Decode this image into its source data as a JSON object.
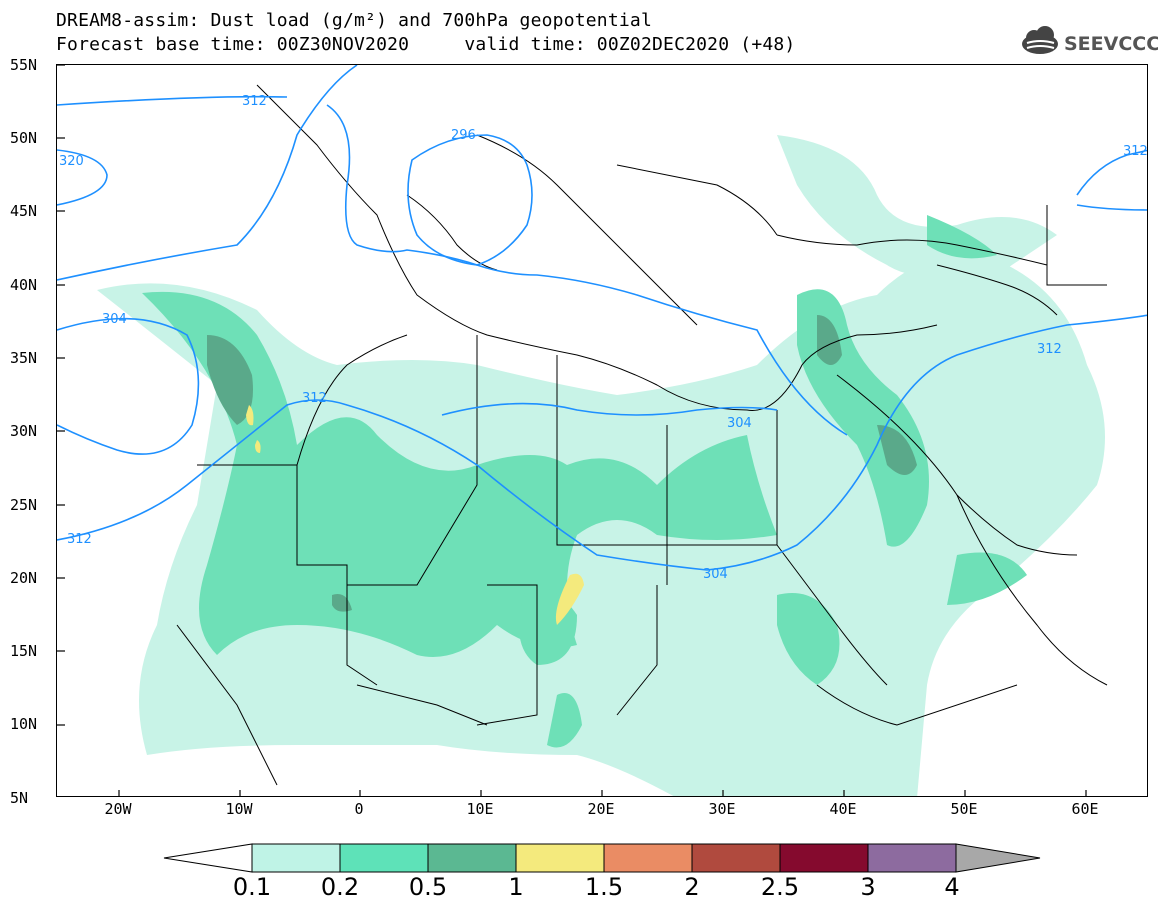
{
  "title": {
    "line1": "DREAM8-assim: Dust load (g/m²) and 700hPa geopotential",
    "line2": "Forecast base time: 00Z30NOV2020     valid time: 00Z02DEC2020 (+48)"
  },
  "logo_text": "SEEVCCC",
  "map": {
    "lat_labels": [
      "55N",
      "50N",
      "45N",
      "40N",
      "35N",
      "30N",
      "25N",
      "20N",
      "15N",
      "10N",
      "5N"
    ],
    "lon_labels": [
      "20W",
      "10W",
      "0",
      "10E",
      "20E",
      "30E",
      "40E",
      "50E",
      "60E"
    ],
    "contour_labels": [
      "312",
      "296",
      "320",
      "304",
      "312",
      "304",
      "312",
      "304",
      "312",
      "312"
    ],
    "contour_color": "#1e90ff",
    "land_border_color": "#000000"
  },
  "colorbar": {
    "labels": [
      "0.1",
      "0.2",
      "0.5",
      "1",
      "1.5",
      "2",
      "2.5",
      "3",
      "4"
    ],
    "colors": [
      "#bff3e6",
      "#5ee2b8",
      "#5bb892",
      "#f4ea7d",
      "#ea8c64",
      "#b04a3e",
      "#850a2e",
      "#8d6b9f",
      "#a8a8a8"
    ]
  },
  "colors": {
    "dust_lt": "#c8f3e7",
    "dust_md": "#6ee0b7",
    "dust_dk": "#5aa98a",
    "dust_yellow": "#f4ea7d"
  }
}
